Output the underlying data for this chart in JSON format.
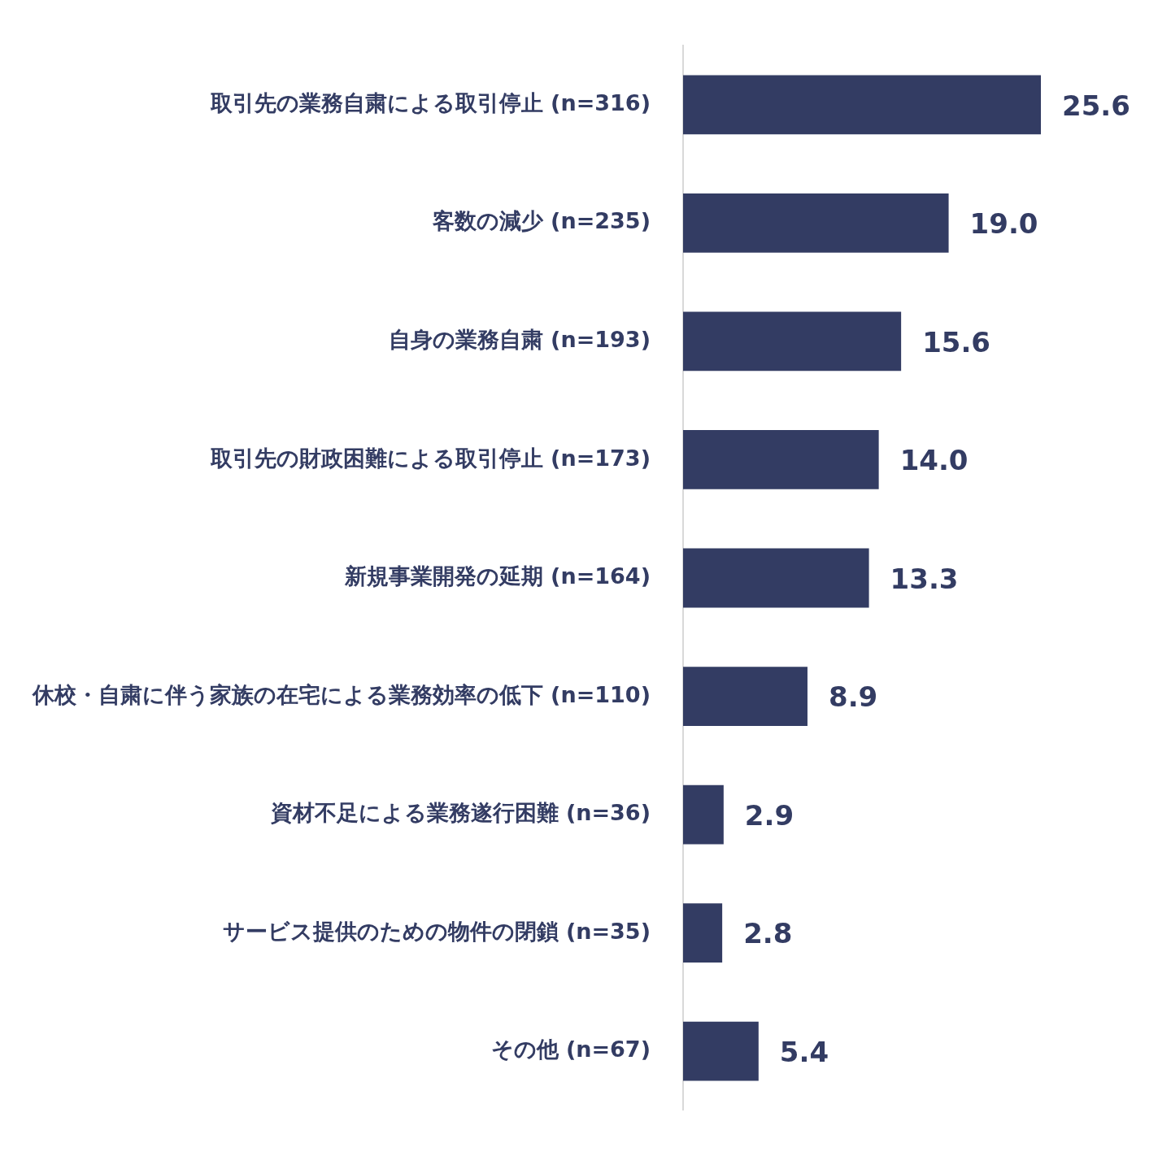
{
  "chart_data": {
    "type": "bar",
    "orientation": "horizontal",
    "categories": [
      "取引先の業務自粛による取引停止 (n=316)",
      "客数の減少 (n=235)",
      "自身の業務自粛 (n=193)",
      "取引先の財政困難による取引停止 (n=173)",
      "新規事業開発の延期 (n=164)",
      "休校・自粛に伴う家族の在宅による業務効率の低下 (n=110)",
      "資材不足による業務遂行困難 (n=36)",
      "サービス提供のための物件の閉鎖 (n=35)",
      "その他 (n=67)"
    ],
    "values": [
      25.6,
      19.0,
      15.6,
      14.0,
      13.3,
      8.9,
      2.9,
      2.8,
      5.4
    ],
    "value_labels": [
      "25.6",
      "19.0",
      "15.6",
      "14.0",
      "13.3",
      "8.9",
      "2.9",
      "2.8",
      "5.4"
    ],
    "color": "#333c63",
    "grid": false,
    "legend": false,
    "tick_labels": "y"
  }
}
